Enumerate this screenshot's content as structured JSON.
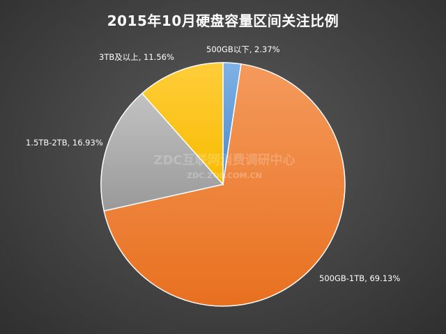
{
  "title": "2015年10月硬盘容量区间关注比例",
  "watermark": {
    "main": "ZDC互联网消费调研中心",
    "sub": "ZDC.ZOL.COM.CN"
  },
  "chart_data": {
    "type": "pie",
    "title": "2015年10月硬盘容量区间关注比例",
    "start_angle_deg": 0,
    "direction": "clockwise",
    "legend": "none",
    "slices": [
      {
        "name": "500GB以下",
        "value": 2.37,
        "label": "500GB以下, 2.37%",
        "color": "#5b9bd5"
      },
      {
        "name": "500GB-1TB",
        "value": 69.13,
        "label": "500GB-1TB, 69.13%",
        "color": "#ed7d31"
      },
      {
        "name": "1.5TB-2TB",
        "value": 16.93,
        "label": "1.5TB-2TB, 16.93%",
        "color": "#a5a5a5"
      },
      {
        "name": "3TB及以上",
        "value": 11.56,
        "label": "3TB及以上, 11.56%",
        "color": "#ffc000"
      }
    ]
  }
}
